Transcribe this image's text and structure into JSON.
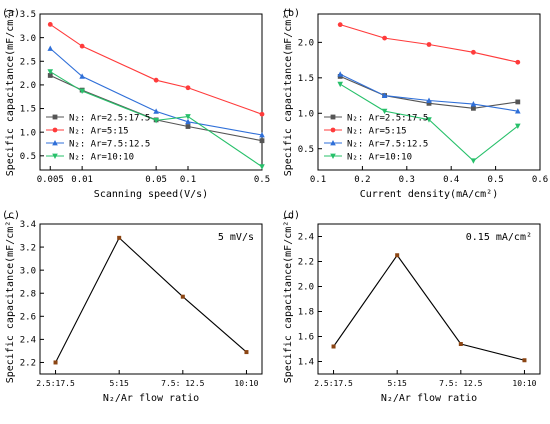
{
  "chart_data": [
    {
      "type": "line",
      "panel_label": "(a)",
      "xlabel": "Scanning speed(V/s)",
      "ylabel": "Specific capacitance(mF/cm²)",
      "xscale": "log",
      "xlim": [
        0.004,
        0.5
      ],
      "ylim": [
        0.2,
        3.5
      ],
      "x_ticks": [
        0.005,
        0.01,
        0.05,
        0.1,
        0.5
      ],
      "x_tick_labels": [
        "0.005",
        "0.01",
        "0.05",
        "0.1",
        "0.5"
      ],
      "y_ticks": [
        0.5,
        1.0,
        1.5,
        2.0,
        2.5,
        3.0,
        3.5
      ],
      "y_tick_labels": [
        "0.5",
        "1.0",
        "1.5",
        "2.0",
        "2.5",
        "3.0",
        "3.5"
      ],
      "legend_position": "bottom-left",
      "grid": false,
      "x": [
        0.005,
        0.01,
        0.05,
        0.1,
        0.5
      ],
      "series": [
        {
          "name": "N₂: Ar=2.5:17.5",
          "color": "#555555",
          "marker": "square",
          "values": [
            2.2,
            1.89,
            1.26,
            1.12,
            0.82
          ]
        },
        {
          "name": "N₂: Ar=5:15",
          "color": "#ff3b3b",
          "marker": "circle",
          "values": [
            3.28,
            2.82,
            2.1,
            1.94,
            1.38
          ]
        },
        {
          "name": "N₂: Ar=7.5:12.5",
          "color": "#2f6fd8",
          "marker": "triangle-up",
          "values": [
            2.77,
            2.18,
            1.44,
            1.22,
            0.94
          ]
        },
        {
          "name": "N₂: Ar=10:10",
          "color": "#27c06a",
          "marker": "triangle-down",
          "values": [
            2.28,
            1.87,
            1.25,
            1.33,
            0.27
          ]
        }
      ]
    },
    {
      "type": "line",
      "panel_label": "(b)",
      "xlabel": "Current density(mA/cm²)",
      "ylabel": "Specific capacitance(mF/cm²)",
      "xlim": [
        0.1,
        0.6
      ],
      "ylim": [
        0.2,
        2.4
      ],
      "x_ticks": [
        0.1,
        0.2,
        0.3,
        0.4,
        0.5,
        0.6
      ],
      "x_tick_labels": [
        "0.1",
        "0.2",
        "0.3",
        "0.4",
        "0.5",
        "0.6"
      ],
      "y_ticks": [
        0.5,
        1.0,
        1.5,
        2.0
      ],
      "y_tick_labels": [
        "0.5",
        "1.0",
        "1.5",
        "2.0"
      ],
      "legend_position": "bottom-left",
      "grid": false,
      "x": [
        0.15,
        0.25,
        0.35,
        0.45,
        0.55
      ],
      "series": [
        {
          "name": "N₂: Ar=2.5:17.5",
          "color": "#555555",
          "marker": "square",
          "values": [
            1.52,
            1.25,
            1.14,
            1.07,
            1.16
          ]
        },
        {
          "name": "N₂: Ar=5:15",
          "color": "#ff3b3b",
          "marker": "circle",
          "values": [
            2.25,
            2.06,
            1.97,
            1.86,
            1.72
          ]
        },
        {
          "name": "N₂: Ar=7.5:12.5",
          "color": "#2f6fd8",
          "marker": "triangle-up",
          "values": [
            1.55,
            1.25,
            1.18,
            1.13,
            1.03
          ]
        },
        {
          "name": "N₂: Ar=10:10",
          "color": "#27c06a",
          "marker": "triangle-down",
          "values": [
            1.41,
            1.03,
            0.91,
            0.33,
            0.82
          ]
        }
      ]
    },
    {
      "type": "line",
      "panel_label": "(c)",
      "annotation": "5 mV/s",
      "xlabel": "N₂/Ar flow ratio",
      "ylabel": "Specific capacitance(mF/cm²)",
      "ylim": [
        2.1,
        3.4
      ],
      "y_ticks": [
        2.2,
        2.4,
        2.6,
        2.8,
        3.0,
        3.2,
        3.4
      ],
      "y_tick_labels": [
        "2.2",
        "2.4",
        "2.6",
        "2.8",
        "3.0",
        "3.2",
        "3.4"
      ],
      "categories": [
        "2.5:17.5",
        "5:15",
        "7.5: 12.5",
        "10:10"
      ],
      "grid": false,
      "series": [
        {
          "color": "#000000",
          "marker_color": "#8b4513",
          "marker": "square",
          "values": [
            2.2,
            3.28,
            2.77,
            2.29
          ]
        }
      ]
    },
    {
      "type": "line",
      "panel_label": "(d)",
      "annotation": "0.15 mA/cm²",
      "xlabel": "N₂/Ar flow ratio",
      "ylabel": "Specific capacitance(mF/cm²)",
      "ylim": [
        1.3,
        2.5
      ],
      "y_ticks": [
        1.4,
        1.6,
        1.8,
        2.0,
        2.2,
        2.4
      ],
      "y_tick_labels": [
        "1.4",
        "1.6",
        "1.8",
        "2.0",
        "2.2",
        "2.4"
      ],
      "categories": [
        "2.5:17.5",
        "5:15",
        "7.5: 12.5",
        "10:10"
      ],
      "grid": false,
      "series": [
        {
          "color": "#000000",
          "marker_color": "#8b4513",
          "marker": "square",
          "values": [
            1.52,
            2.25,
            1.54,
            1.41
          ]
        }
      ]
    }
  ]
}
